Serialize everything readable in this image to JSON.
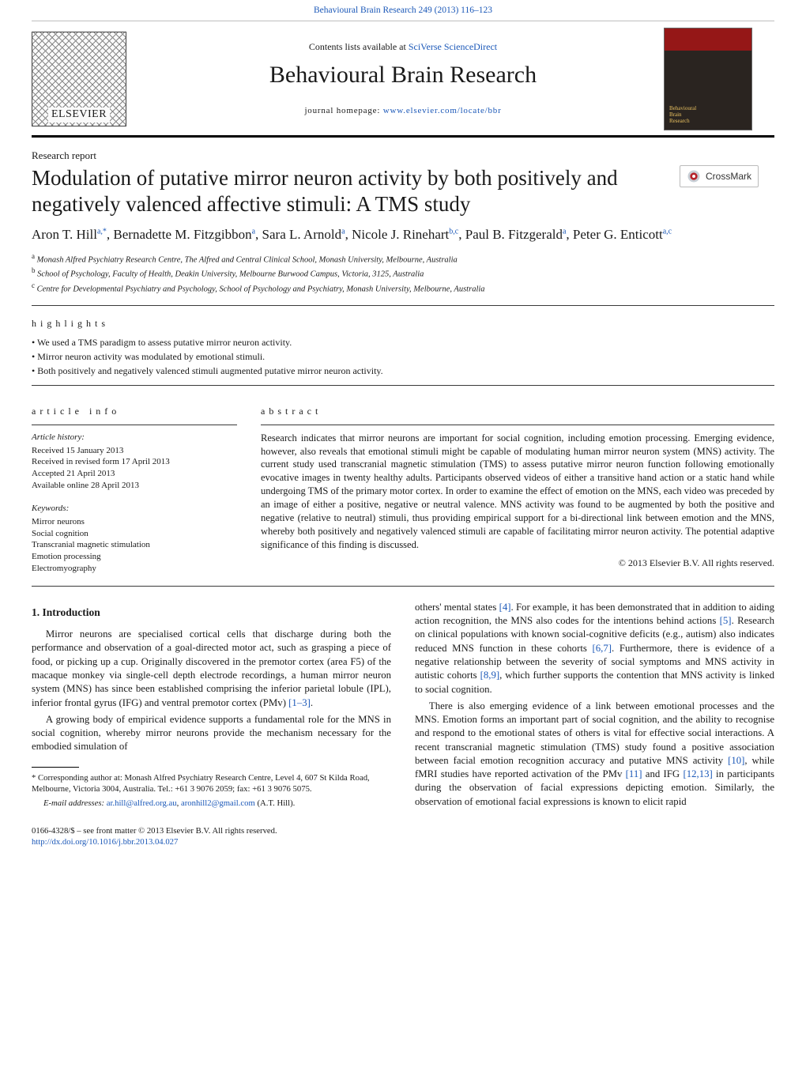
{
  "header": {
    "citation_link": "Behavioural Brain Research 249 (2013) 116–123",
    "contents_line_prefix": "Contents lists available at ",
    "contents_line_link": "SciVerse ScienceDirect",
    "journal_name": "Behavioural Brain Research",
    "homepage_prefix": "journal homepage: ",
    "homepage_link": "www.elsevier.com/locate/bbr",
    "publisher_logo_text": "ELSEVIER",
    "cover_label_line1": "Behavioural",
    "cover_label_line2": "Brain",
    "cover_label_line3": "Research"
  },
  "article": {
    "section_label": "Research report",
    "title": "Modulation of putative mirror neuron activity by both positively and negatively valenced affective stimuli: A TMS study",
    "crossmark_label": "CrossMark",
    "authors_html": "Aron T. Hill<sup>a,*</sup>, Bernadette M. Fitzgibbon<sup>a</sup>, Sara L. Arnold<sup>a</sup>, Nicole J. Rinehart<sup>b,c</sup>, Paul B. Fitzgerald<sup>a</sup>, Peter G. Enticott<sup>a,c</sup>",
    "affiliations": [
      {
        "marker": "a",
        "text": "Monash Alfred Psychiatry Research Centre, The Alfred and Central Clinical School, Monash University, Melbourne, Australia"
      },
      {
        "marker": "b",
        "text": "School of Psychology, Faculty of Health, Deakin University, Melbourne Burwood Campus, Victoria, 3125, Australia"
      },
      {
        "marker": "c",
        "text": "Centre for Developmental Psychiatry and Psychology, School of Psychology and Psychiatry, Monash University, Melbourne, Australia"
      }
    ],
    "highlights_heading": "highlights",
    "highlights": [
      "We used a TMS paradigm to assess putative mirror neuron activity.",
      "Mirror neuron activity was modulated by emotional stimuli.",
      "Both positively and negatively valenced stimuli augmented putative mirror neuron activity."
    ],
    "info_heading": "article info",
    "abstract_heading": "abstract",
    "history_label": "Article history:",
    "history": [
      "Received 15 January 2013",
      "Received in revised form 17 April 2013",
      "Accepted 21 April 2013",
      "Available online 28 April 2013"
    ],
    "keywords_label": "Keywords:",
    "keywords": [
      "Mirror neurons",
      "Social cognition",
      "Transcranial magnetic stimulation",
      "Emotion processing",
      "Electromyography"
    ],
    "abstract": "Research indicates that mirror neurons are important for social cognition, including emotion processing. Emerging evidence, however, also reveals that emotional stimuli might be capable of modulating human mirror neuron system (MNS) activity. The current study used transcranial magnetic stimulation (TMS) to assess putative mirror neuron function following emotionally evocative images in twenty healthy adults. Participants observed videos of either a transitive hand action or a static hand while undergoing TMS of the primary motor cortex. In order to examine the effect of emotion on the MNS, each video was preceded by an image of either a positive, negative or neutral valence. MNS activity was found to be augmented by both the positive and negative (relative to neutral) stimuli, thus providing empirical support for a bi-directional link between emotion and the MNS, whereby both positively and negatively valenced stimuli are capable of facilitating mirror neuron activity. The potential adaptive significance of this finding is discussed.",
    "copyright": "© 2013 Elsevier B.V. All rights reserved."
  },
  "body": {
    "heading": "1.  Introduction",
    "p1": "Mirror neurons are specialised cortical cells that discharge during both the performance and observation of a goal-directed motor act, such as grasping a piece of food, or picking up a cup. Originally discovered in the premotor cortex (area F5) of the macaque monkey via single-cell depth electrode recordings, a human mirror neuron system (MNS) has since been established comprising the inferior parietal lobule (IPL), inferior frontal gyrus (IFG) and ventral premotor cortex (PMv) ",
    "p1_ref": "[1–3]",
    "p1_tail": ".",
    "p2": "A growing body of empirical evidence supports a fundamental role for the MNS in social cognition, whereby mirror neurons provide the mechanism necessary for the embodied simulation of",
    "p3_a": "others' mental states ",
    "p3_ref1": "[4]",
    "p3_b": ". For example, it has been demonstrated that in addition to aiding action recognition, the MNS also codes for the intentions behind actions ",
    "p3_ref2": "[5]",
    "p3_c": ". Research on clinical populations with known social-cognitive deficits (e.g., autism) also indicates reduced MNS function in these cohorts ",
    "p3_ref3": "[6,7]",
    "p3_d": ". Furthermore, there is evidence of a negative relationship between the severity of social symptoms and MNS activity in autistic cohorts ",
    "p3_ref4": "[8,9]",
    "p3_e": ", which further supports the contention that MNS activity is linked to social cognition.",
    "p4_a": "There is also emerging evidence of a link between emotional processes and the MNS. Emotion forms an important part of social cognition, and the ability to recognise and respond to the emotional states of others is vital for effective social interactions. A recent transcranial magnetic stimulation (TMS) study found a positive association between facial emotion recognition accuracy and putative MNS activity ",
    "p4_ref1": "[10]",
    "p4_b": ", while fMRI studies have reported activation of the PMv ",
    "p4_ref2": "[11]",
    "p4_c": " and IFG ",
    "p4_ref3": "[12,13]",
    "p4_d": " in participants during the observation of facial expressions depicting emotion. Similarly, the observation of emotional facial expressions is known to elicit rapid"
  },
  "footnotes": {
    "corr_marker": "*",
    "corr_text": " Corresponding author at: Monash Alfred Psychiatry Research Centre, Level 4, 607 St Kilda Road, Melbourne, Victoria 3004, Australia. Tel.: +61 3 9076 2059; fax: +61 3 9076 5075.",
    "email_label": "E-mail addresses: ",
    "email1": "ar.hill@alfred.org.au",
    "email_sep": ", ",
    "email2": "aronhill2@gmail.com",
    "email_tail": " (A.T. Hill)."
  },
  "footer": {
    "line1": "0166-4328/$ – see front matter © 2013 Elsevier B.V. All rights reserved.",
    "doi": "http://dx.doi.org/10.1016/j.bbr.2013.04.027"
  },
  "colors": {
    "link": "#1b58b8",
    "rule": "#3a3a3a",
    "cover_top": "#951717",
    "cover_bottom": "#2a2420",
    "cover_text": "#e8c060"
  }
}
